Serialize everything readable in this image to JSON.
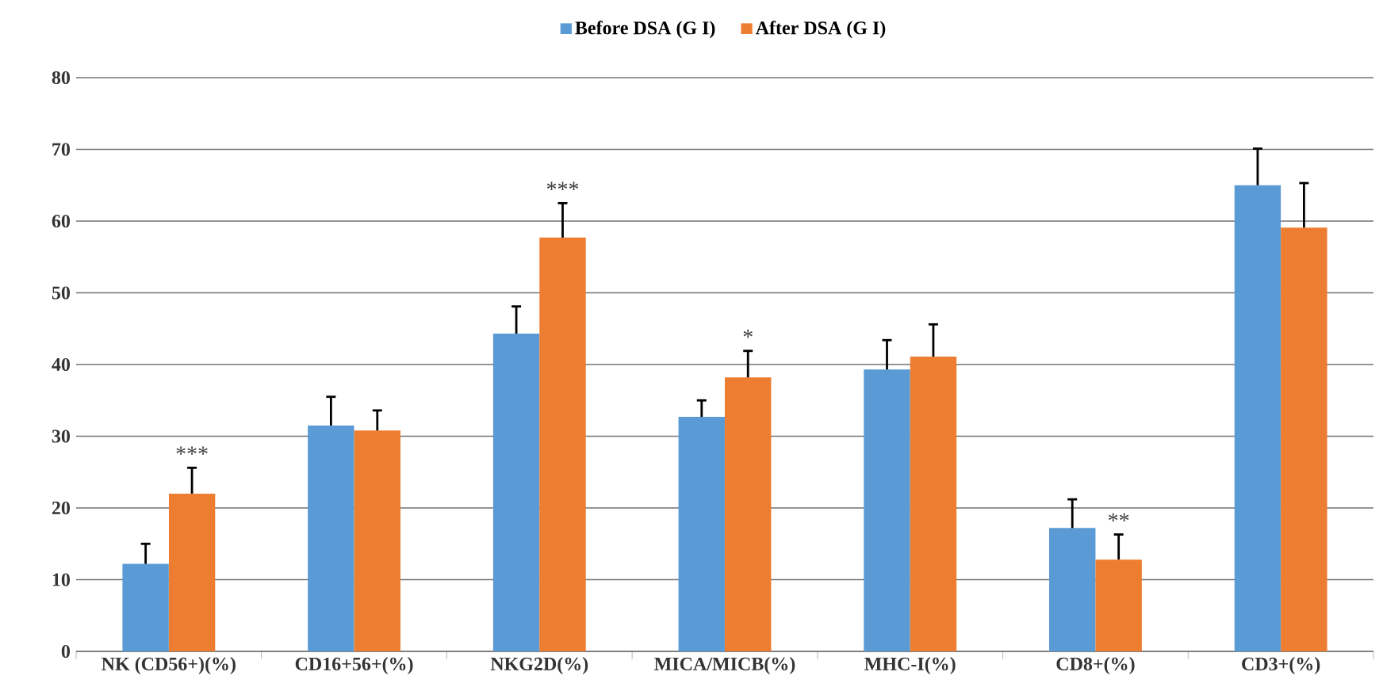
{
  "chart_data": {
    "type": "bar",
    "categories": [
      "NK (CD56+)(%)",
      "CD16+56+(%)",
      "NKG2D(%)",
      "MICA/MICB(%)",
      "MHC-I(%)",
      "CD8+(%)",
      "CD3+(%)"
    ],
    "series": [
      {
        "name": "Before DSA (G I)",
        "color": "#5b9bd5",
        "values": [
          12.2,
          31.5,
          44.3,
          32.7,
          39.3,
          17.2,
          65.0
        ],
        "errors": [
          [
            12.2,
            15.0
          ],
          [
            31.5,
            35.5
          ],
          [
            44.3,
            48.1
          ],
          [
            32.7,
            35.0
          ],
          [
            39.3,
            43.4
          ],
          [
            17.2,
            21.2
          ],
          [
            65.0,
            70.1
          ]
        ]
      },
      {
        "name": "After DSA (G I)",
        "color": "#ed7d31",
        "values": [
          22.0,
          30.8,
          57.7,
          38.2,
          41.1,
          12.8,
          59.1
        ],
        "errors": [
          [
            22.0,
            25.6
          ],
          [
            30.8,
            33.6
          ],
          [
            57.7,
            62.5
          ],
          [
            38.2,
            41.9
          ],
          [
            41.1,
            45.6
          ],
          [
            12.8,
            16.3
          ],
          [
            59.1,
            65.3
          ]
        ]
      }
    ],
    "ylim": [
      0,
      80
    ],
    "yticks": [
      0,
      10,
      20,
      30,
      40,
      50,
      60,
      70,
      80
    ],
    "grid": "y",
    "legend": "top",
    "annotations": [
      {
        "text": "***",
        "x": "NK (CD56+)(%)",
        "y": 22.0
      },
      {
        "text": "***",
        "x": "NKG2D(%)",
        "y": 57.7
      },
      {
        "text": "*",
        "x": "MICA/MICB(%)",
        "y": 38.2
      },
      {
        "text": "**",
        "x": "CD8+(%)",
        "y": 12.8
      }
    ]
  }
}
